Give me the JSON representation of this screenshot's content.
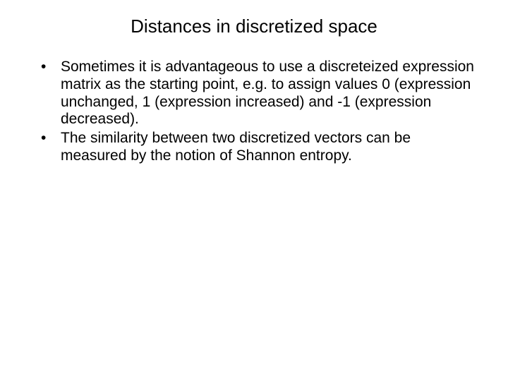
{
  "slide": {
    "title": "Distances in discretized space",
    "bullets": [
      "Sometimes it is advantageous to use a discreteized expression matrix as the starting point, e.g. to assign values 0 (expression unchanged, 1 (expression increased) and -1 (expression decreased).",
      "The similarity between two discretized vectors can be measured by the notion of Shannon entropy."
    ],
    "background_color": "#ffffff",
    "text_color": "#000000",
    "title_fontsize": 26,
    "body_fontsize": 21
  }
}
